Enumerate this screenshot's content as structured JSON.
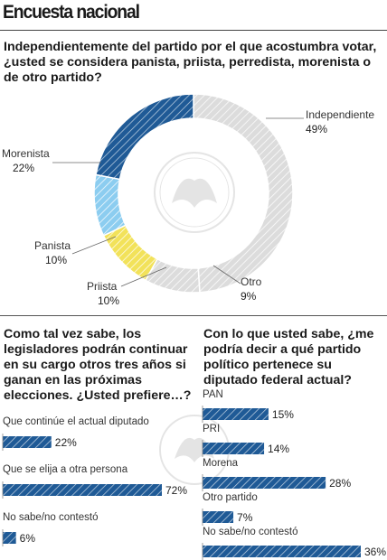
{
  "header": {
    "title": "Encuesta nacional"
  },
  "chart_data": [
    {
      "type": "pie",
      "title": "Independientemente del partido por el que acostumbra votar, ¿usted se considera panista, priista, perredista, morenista o de otro partido?",
      "categories": [
        "Independiente",
        "Morenista",
        "Panista",
        "Priista",
        "Otro"
      ],
      "values": [
        49,
        22,
        10,
        10,
        9
      ],
      "value_labels": [
        "49%",
        "22%",
        "10%",
        "10%",
        "9%"
      ],
      "colors": {
        "Independiente": "#dcdcdc",
        "Morenista": "#1f5a96",
        "Panista": "#8ccdf0",
        "Priista": "#f2e25a",
        "Otro": "#dcdcdc"
      }
    },
    {
      "type": "bar",
      "title": "Como tal vez sabe, los legisladores podrán continuar en su cargo otros tres años si ganan en las próximas elecciones. ¿Usted prefiere…?",
      "categories": [
        "Que continúe el actual diputado",
        "Que se elija a otra persona",
        "No sabe/no contestó"
      ],
      "values": [
        22,
        72,
        6
      ],
      "value_labels": [
        "22%",
        "72%",
        "6%"
      ],
      "color": "#1f5a96"
    },
    {
      "type": "bar",
      "title": "Con lo que usted sabe, ¿me podría decir a qué partido político pertenece su diputado federal actual?",
      "categories": [
        "PAN",
        "PRI",
        "Morena",
        "Otro partido",
        "No sabe/no contestó"
      ],
      "values": [
        15,
        14,
        28,
        7,
        36
      ],
      "value_labels": [
        "15%",
        "14%",
        "28%",
        "7%",
        "36%"
      ],
      "color": "#1f5a96"
    }
  ]
}
